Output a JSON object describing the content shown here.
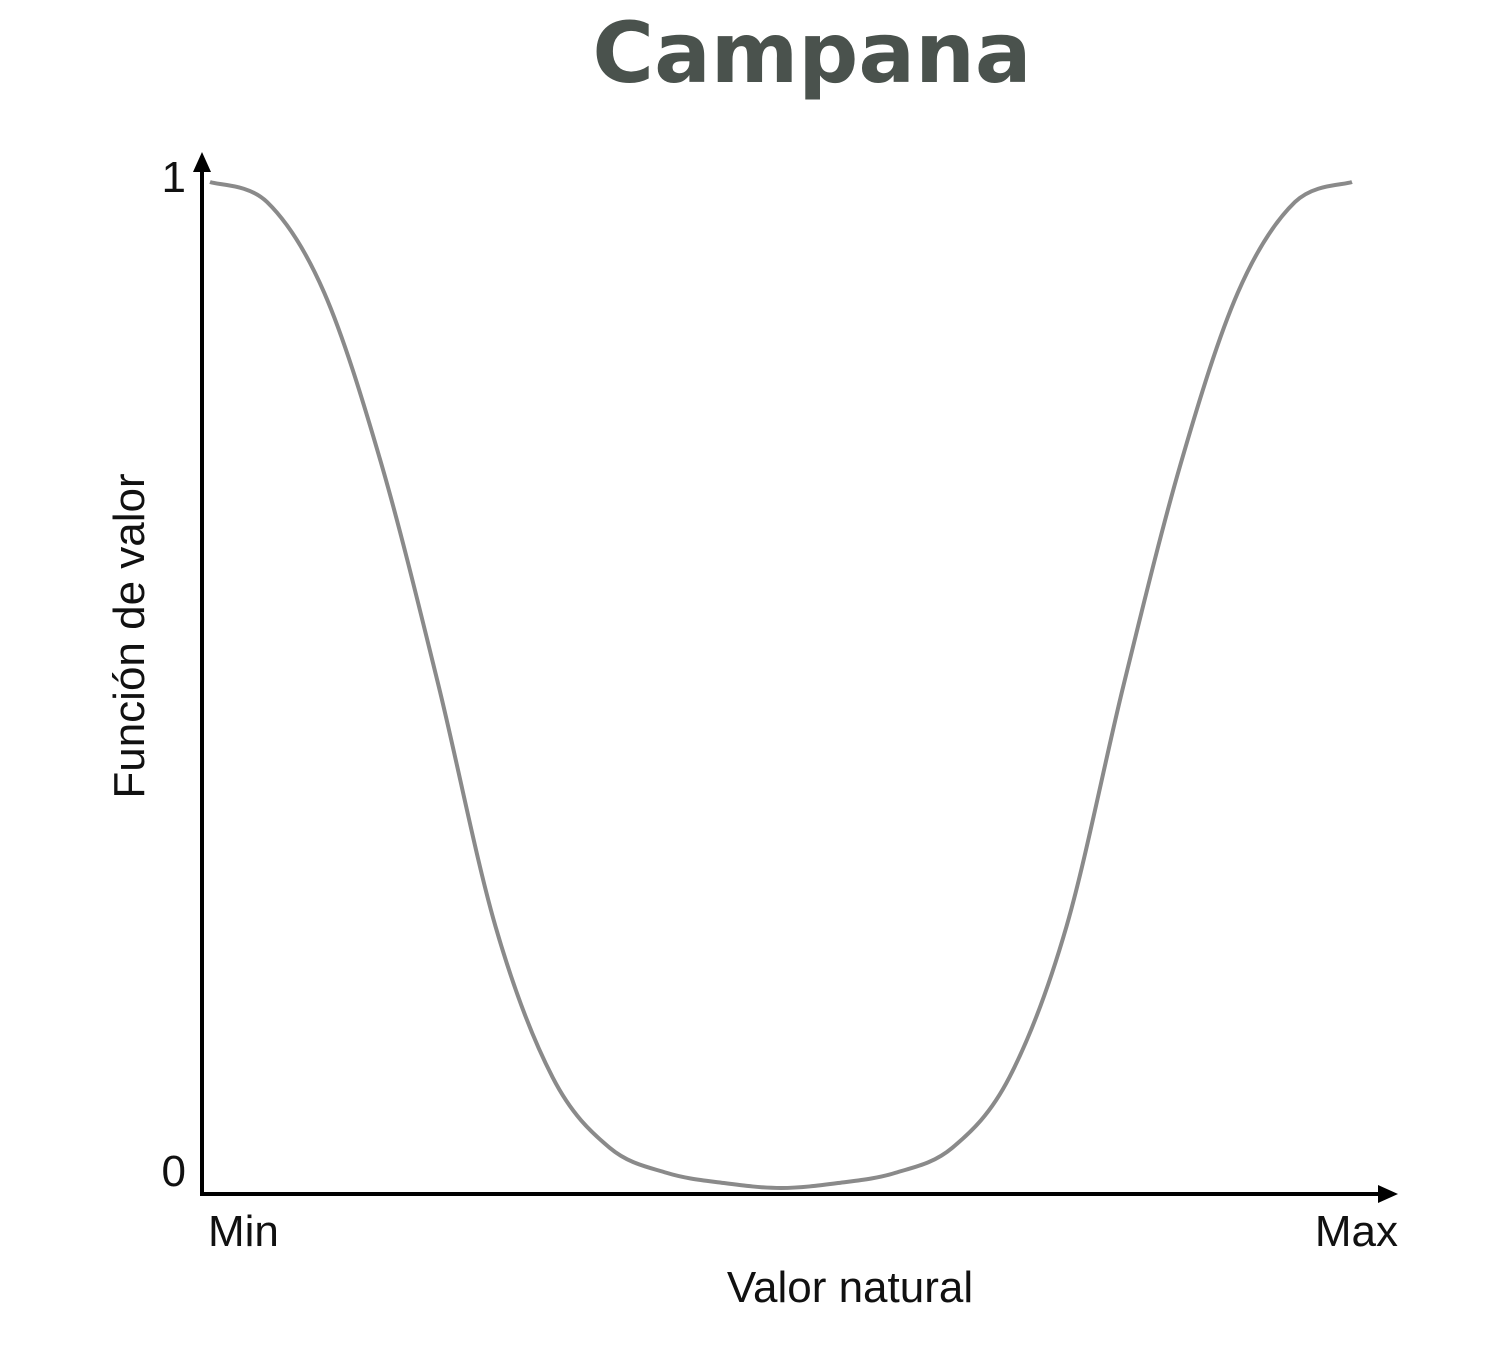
{
  "chart_data": {
    "type": "line",
    "title": "Campana",
    "xlabel": "Valor natural",
    "ylabel": "Función de valor",
    "x_tick_labels": {
      "min": "Min",
      "max": "Max"
    },
    "y_tick_labels": {
      "bottom": "0",
      "top": "1"
    },
    "xlim": [
      0,
      1
    ],
    "ylim": [
      0,
      1
    ],
    "grid": false,
    "legend": "none",
    "series": [
      {
        "x": [
          0,
          0.05,
          0.1,
          0.15,
          0.2,
          0.25,
          0.3,
          0.35,
          0.4,
          0.45,
          0.5,
          0.55,
          0.6,
          0.65,
          0.7,
          0.75,
          0.8,
          0.85,
          0.9,
          0.95,
          1
        ],
        "y": [
          1.0,
          0.98,
          0.89,
          0.72,
          0.5,
          0.26,
          0.11,
          0.04,
          0.015,
          0.005,
          0.0,
          0.005,
          0.015,
          0.04,
          0.11,
          0.26,
          0.5,
          0.72,
          0.89,
          0.98,
          1.0
        ]
      }
    ],
    "colors": {
      "title": "#4a524d",
      "curve": "#8a8a8a",
      "axis": "#000000"
    }
  }
}
